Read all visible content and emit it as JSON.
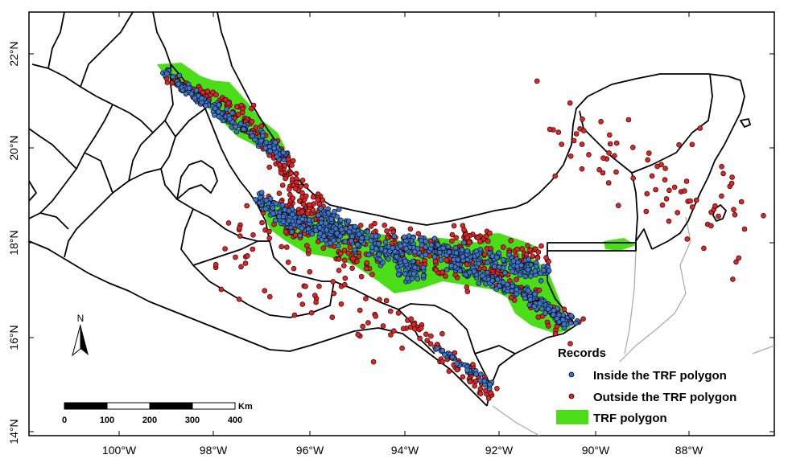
{
  "map": {
    "x_ticks": [
      "100°W",
      "98°W",
      "96°W",
      "94°W",
      "92°W",
      "90°W",
      "88°W"
    ],
    "y_ticks": [
      "22°N",
      "20°N",
      "18°N",
      "16°N",
      "14°N"
    ],
    "colors": {
      "inside": "#3b74c9",
      "outside": "#e02424",
      "polygon": "#4cdd19",
      "boundary": "#000000",
      "international": "#a8a8a8"
    }
  },
  "legend": {
    "title": "Records",
    "inside_label": "Inside the TRF polygon",
    "outside_label": "Outside the TRF polygon",
    "polygon_label": "TRF polygon"
  },
  "scale_bar": {
    "unit": "Km",
    "labels": [
      "0",
      "100",
      "200",
      "300",
      "400"
    ]
  },
  "north_arrow": {
    "label": "N"
  }
}
